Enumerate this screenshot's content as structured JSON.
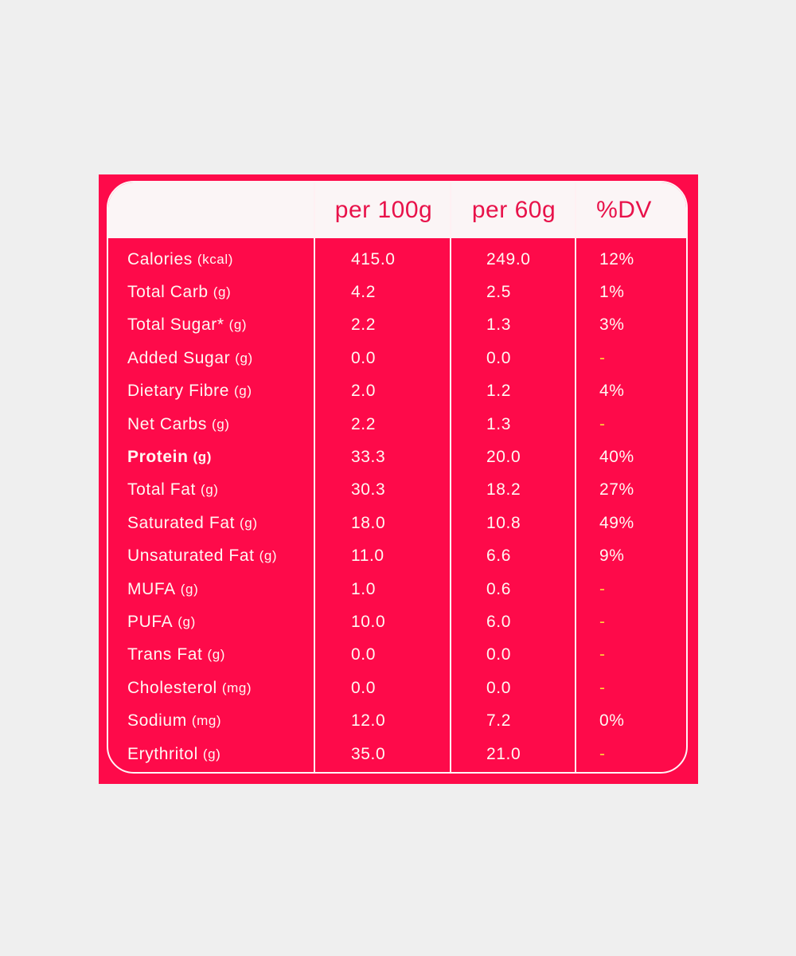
{
  "header": {
    "per100": "per 100g",
    "per60": "per 60g",
    "dv": "%DV"
  },
  "rows": [
    {
      "name": "Calories",
      "unit": "(kcal)",
      "per100": "415.0",
      "per60": "249.0",
      "dv": "12%"
    },
    {
      "name": "Total Carb",
      "unit": "(g)",
      "per100": "4.2",
      "per60": "2.5",
      "dv": "1%"
    },
    {
      "name": "Total Sugar*",
      "unit": "(g)",
      "per100": "2.2",
      "per60": "1.3",
      "dv": "3%"
    },
    {
      "name": "Added Sugar",
      "unit": "(g)",
      "per100": "0.0",
      "per60": "0.0",
      "dv": "-"
    },
    {
      "name": "Dietary Fibre",
      "unit": "(g)",
      "per100": "2.0",
      "per60": "1.2",
      "dv": "4%"
    },
    {
      "name": "Net Carbs",
      "unit": "(g)",
      "per100": "2.2",
      "per60": "1.3",
      "dv": "-"
    },
    {
      "name": "Protein",
      "unit": "(g)",
      "per100": "33.3",
      "per60": "20.0",
      "dv": "40%",
      "bold": true
    },
    {
      "name": "Total Fat",
      "unit": "(g)",
      "per100": "30.3",
      "per60": "18.2",
      "dv": "27%"
    },
    {
      "name": "Saturated Fat",
      "unit": "(g)",
      "per100": "18.0",
      "per60": "10.8",
      "dv": "49%"
    },
    {
      "name": "Unsaturated Fat",
      "unit": "(g)",
      "per100": "11.0",
      "per60": "6.6",
      "dv": "9%"
    },
    {
      "name": "MUFA",
      "unit": "(g)",
      "per100": "1.0",
      "per60": "0.6",
      "dv": "-"
    },
    {
      "name": "PUFA",
      "unit": "(g)",
      "per100": "10.0",
      "per60": "6.0",
      "dv": "-"
    },
    {
      "name": "Trans Fat",
      "unit": "(g)",
      "per100": "0.0",
      "per60": "0.0",
      "dv": "-"
    },
    {
      "name": "Cholesterol",
      "unit": "(mg)",
      "per100": "0.0",
      "per60": "0.0",
      "dv": "-"
    },
    {
      "name": "Sodium",
      "unit": "(mg)",
      "per100": "12.0",
      "per60": "7.2",
      "dv": "0%"
    },
    {
      "name": "Erythritol",
      "unit": "(g)",
      "per100": "35.0",
      "per60": "21.0",
      "dv": "-"
    }
  ],
  "colors": {
    "background": "#efefef",
    "panel": "#fe0a4a",
    "header_background": "#fbf5f6",
    "header_text": "#e8124a",
    "row_text": "#fff7f2",
    "dash": "#ffd23c"
  }
}
